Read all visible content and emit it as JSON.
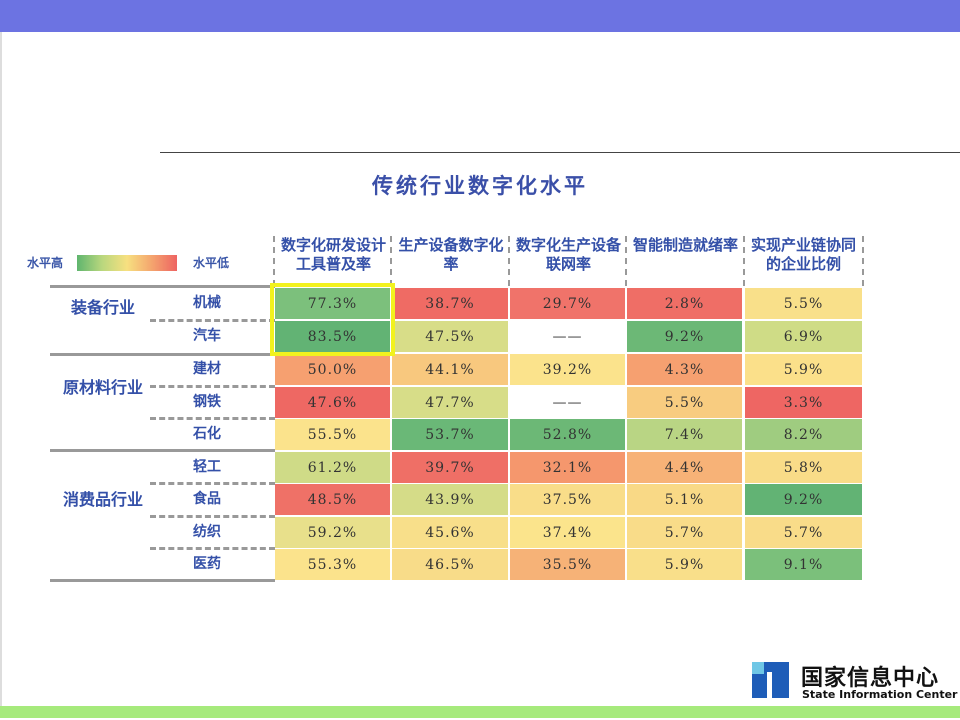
{
  "title": "传统行业数字化水平",
  "legend": {
    "high": "水平高",
    "low": "水平低"
  },
  "columns": [
    "数字化研发设计工具普及率",
    "生产设备数字化率",
    "数字化生产设备联网率",
    "智能制造就绪率",
    "实现产业链协同的企业比例"
  ],
  "groups": [
    {
      "name": "装备行业",
      "rows": [
        {
          "name": "机械",
          "values": [
            "77.3%",
            "38.7%",
            "29.7%",
            "2.8%",
            "5.5%"
          ],
          "colors": [
            "#7cc07c",
            "#ef6b64",
            "#f0736a",
            "#ef6e66",
            "#f9e08a"
          ]
        },
        {
          "name": "汽车",
          "values": [
            "83.5%",
            "47.5%",
            "——",
            "9.2%",
            "6.9%"
          ],
          "colors": [
            "#62b374",
            "#d8dd88",
            "#ffffff",
            "#6cb876",
            "#cfdc86"
          ]
        }
      ]
    },
    {
      "name": "原材料行业",
      "rows": [
        {
          "name": "建材",
          "values": [
            "50.0%",
            "44.1%",
            "39.2%",
            "4.3%",
            "5.9%"
          ],
          "colors": [
            "#f6a070",
            "#f8c87e",
            "#fbe38c",
            "#f6a070",
            "#fbe08a"
          ]
        },
        {
          "name": "钢铁",
          "values": [
            "47.6%",
            "47.7%",
            "——",
            "5.5%",
            "3.3%"
          ],
          "colors": [
            "#ee6863",
            "#d7dd88",
            "#ffffff",
            "#f8cc80",
            "#ee6663"
          ]
        },
        {
          "name": "石化",
          "values": [
            "55.5%",
            "53.7%",
            "52.8%",
            "7.4%",
            "8.2%"
          ],
          "colors": [
            "#fbe38c",
            "#6ab877",
            "#6cb876",
            "#b9d584",
            "#9fcc80"
          ]
        }
      ]
    },
    {
      "name": "消费品行业",
      "rows": [
        {
          "name": "轻工",
          "values": [
            "61.2%",
            "39.7%",
            "32.1%",
            "4.4%",
            "5.8%"
          ],
          "colors": [
            "#cfdb87",
            "#ef6f66",
            "#f5976d",
            "#f7b277",
            "#f9dc88"
          ]
        },
        {
          "name": "食品",
          "values": [
            "48.5%",
            "43.9%",
            "37.5%",
            "5.1%",
            "9.2%"
          ],
          "colors": [
            "#ef7167",
            "#d5dc88",
            "#f9dd89",
            "#f9d986",
            "#62b374"
          ]
        },
        {
          "name": "纺织",
          "values": [
            "59.2%",
            "45.6%",
            "37.4%",
            "5.7%",
            "5.7%"
          ],
          "colors": [
            "#e8e08b",
            "#f8df8a",
            "#fbe48c",
            "#f9dc89",
            "#f9dc89"
          ]
        },
        {
          "name": "医药",
          "values": [
            "55.3%",
            "46.5%",
            "35.5%",
            "5.9%",
            "9.1%"
          ],
          "colors": [
            "#fbe38c",
            "#f8dc89",
            "#f6b277",
            "#f9df8a",
            "#7bc07b"
          ]
        }
      ]
    }
  ],
  "logo": {
    "cn": "国家信息中心",
    "en": "State Information Center"
  }
}
